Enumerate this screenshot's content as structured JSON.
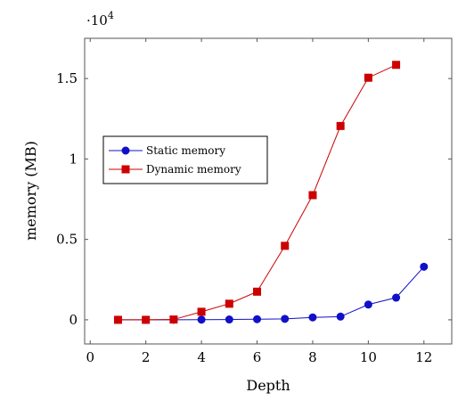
{
  "chart_data": {
    "type": "line",
    "xlabel": "Depth",
    "ylabel": "memory (MB)",
    "y_scale_label": "·10",
    "y_scale_exponent": "4",
    "xlim": [
      -0.2,
      13.0
    ],
    "ylim": [
      -1500,
      17500
    ],
    "x_ticks": [
      0,
      2,
      4,
      6,
      8,
      10,
      12
    ],
    "y_ticks": [
      0,
      5000,
      10000,
      15000
    ],
    "y_tick_labels": [
      "0",
      "0.5",
      "1",
      "1.5"
    ],
    "grid": false,
    "legend_position": "middle-left",
    "series": [
      {
        "name": "Static memory",
        "color": "#1010c8",
        "marker": "circle",
        "x": [
          1,
          2,
          3,
          4,
          5,
          6,
          7,
          8,
          9,
          10,
          11,
          12
        ],
        "y": [
          0,
          0,
          5,
          10,
          20,
          40,
          60,
          150,
          200,
          950,
          1380,
          3300
        ]
      },
      {
        "name": "Dynamic memory",
        "color": "#cc0000",
        "marker": "square",
        "x": [
          1,
          2,
          3,
          4,
          5,
          6,
          7,
          8,
          9,
          10,
          11
        ],
        "y": [
          0,
          0,
          20,
          500,
          1000,
          1750,
          4600,
          7750,
          12050,
          15050,
          15850
        ]
      }
    ]
  }
}
